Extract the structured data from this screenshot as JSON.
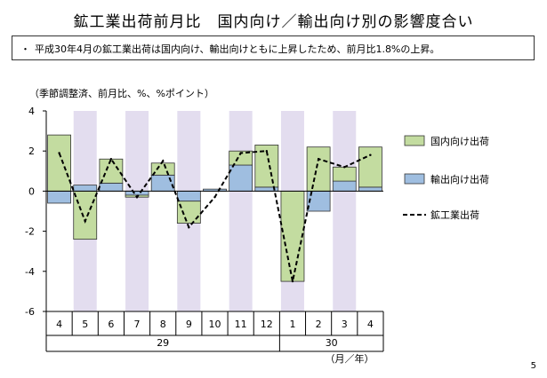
{
  "slide": {
    "title": "鉱工業出荷前月比　国内向け／輸出向け別の影響度合い",
    "summary_bullet": "・",
    "summary": "平成30年4月の鉱工業出荷は国内向け、輸出向けともに上昇したため、前月比1.8%の上昇。",
    "unit_note": "（季節調整済、前月比、%、%ポイント）",
    "page_number": "5"
  },
  "colors": {
    "domestic": "#c3dca0",
    "export": "#9fbee0",
    "shade": "#e3ddef",
    "bar_edge": "#333333",
    "line": "#000000"
  },
  "chart_data": {
    "type": "bar",
    "stacked": true,
    "title": "",
    "xlabel": "（月／年）",
    "ylabel": "",
    "ylim": [
      -6,
      4
    ],
    "yticks": [
      4,
      2,
      0,
      -2,
      -4,
      -6
    ],
    "grid": false,
    "legend_position": "right",
    "categories": [
      "4",
      "5",
      "6",
      "7",
      "8",
      "9",
      "10",
      "11",
      "12",
      "1",
      "2",
      "3",
      "4"
    ],
    "year_groups": [
      {
        "label": "29",
        "first": 0,
        "last": 8
      },
      {
        "label": "30",
        "first": 9,
        "last": 12
      }
    ],
    "shaded_categories": [
      1,
      3,
      5,
      7,
      9,
      11
    ],
    "series": [
      {
        "name": "国内向け出荷",
        "kind": "bar",
        "values": [
          2.8,
          -2.4,
          1.2,
          -0.1,
          0.6,
          -1.1,
          0.0,
          0.7,
          2.1,
          -4.5,
          2.2,
          0.7,
          2.0
        ]
      },
      {
        "name": "輸出向け出荷",
        "kind": "bar",
        "values": [
          -0.6,
          0.3,
          0.4,
          -0.2,
          0.8,
          -0.5,
          0.1,
          1.3,
          0.2,
          0.0,
          -1.0,
          0.5,
          0.2
        ]
      },
      {
        "name": "鉱工業出荷",
        "kind": "line",
        "values": [
          1.9,
          -1.5,
          1.6,
          -0.3,
          1.5,
          -1.8,
          -0.3,
          1.9,
          2.0,
          -4.5,
          1.6,
          1.2,
          1.8
        ]
      }
    ]
  }
}
